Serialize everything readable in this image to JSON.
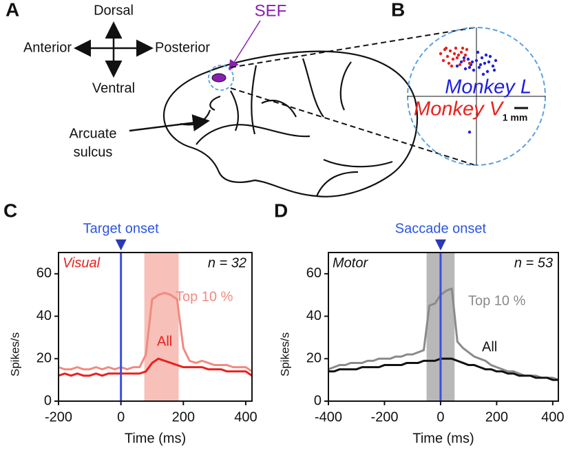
{
  "diagram": {
    "panel": "A",
    "dorsal": "Dorsal",
    "anterior": "Anterior",
    "posterior": "Posterior",
    "ventral": "Ventral",
    "sef": "SEF",
    "arcuate": [
      "Arcuate",
      "sulcus"
    ]
  },
  "chart_data": [
    {
      "type": "scatter",
      "panel": "B",
      "xlim": [
        -5,
        5
      ],
      "ylim": [
        -5,
        5
      ],
      "scale_label": "1 mm",
      "series": [
        {
          "name": "Monkey L",
          "color": "#1f1fe0",
          "x": [
            -1.4,
            -1.1,
            -0.8,
            -0.6,
            -0.4,
            -0.2,
            0.0,
            0.2,
            0.4,
            0.6,
            0.8,
            1.0,
            1.2,
            1.4,
            -0.9,
            -0.5,
            0.1,
            0.5,
            0.9,
            1.3,
            -0.3,
            0.3,
            0.7,
            -0.5
          ],
          "y": [
            2.2,
            2.5,
            2.0,
            2.7,
            2.3,
            1.9,
            2.6,
            2.1,
            2.8,
            2.4,
            1.8,
            2.9,
            2.2,
            2.6,
            2.8,
            2.1,
            3.2,
            1.6,
            2.5,
            1.9,
            2.5,
            2.3,
            3.0,
            -2.6
          ]
        },
        {
          "name": "Monkey V",
          "color": "#e8201c",
          "x": [
            -2.6,
            -2.3,
            -2.1,
            -1.9,
            -1.7,
            -1.5,
            -1.3,
            -1.1,
            -0.9,
            -0.7,
            -2.4,
            -2.0,
            -1.6,
            -1.2,
            -0.8,
            -2.2,
            -1.8,
            -1.4,
            -1.0,
            -0.5
          ],
          "y": [
            3.1,
            3.4,
            2.9,
            3.3,
            2.7,
            3.5,
            3.0,
            3.2,
            2.6,
            3.4,
            2.6,
            2.4,
            3.1,
            2.3,
            3.0,
            3.5,
            2.2,
            2.8,
            3.5,
            2.4
          ]
        }
      ]
    },
    {
      "type": "line",
      "panel": "C",
      "event_label": "Target onset",
      "event_x": 0,
      "label": "Visual",
      "label_color": "#e8201c",
      "n_label": "n = 32",
      "xlabel": "Time (ms)",
      "ylabel": "Spikes/s",
      "xlim": [
        -200,
        420
      ],
      "ylim": [
        0,
        70
      ],
      "xticks": [
        -200,
        0,
        200,
        400
      ],
      "yticks": [
        0,
        20,
        40,
        60
      ],
      "highlight": [
        75,
        185
      ],
      "highlight_color": "#f7c0b8",
      "x": [
        -200,
        -180,
        -160,
        -140,
        -120,
        -100,
        -80,
        -60,
        -40,
        -20,
        0,
        20,
        40,
        60,
        80,
        100,
        120,
        140,
        160,
        180,
        200,
        220,
        240,
        260,
        280,
        300,
        320,
        340,
        360,
        380,
        400,
        420
      ],
      "series": [
        {
          "name": "Top 10 %",
          "color": "#f08a80",
          "values": [
            16,
            15,
            15,
            16,
            15,
            15,
            16,
            15,
            16,
            15,
            16,
            15,
            16,
            16,
            22,
            48,
            50,
            51,
            50,
            48,
            25,
            19,
            18,
            19,
            18,
            17,
            17,
            17,
            16,
            16,
            16,
            14
          ]
        },
        {
          "name": "All",
          "color": "#e8201c",
          "values": [
            12,
            13,
            12,
            13,
            12,
            12,
            13,
            12,
            13,
            13,
            13,
            13,
            13,
            13,
            14,
            18,
            20,
            19,
            18,
            17,
            16,
            16,
            16,
            16,
            15,
            15,
            15,
            14,
            14,
            14,
            14,
            12
          ]
        }
      ]
    },
    {
      "type": "line",
      "panel": "D",
      "event_label": "Saccade onset",
      "event_x": 0,
      "label": "Motor",
      "label_color": "#111111",
      "n_label": "n = 53",
      "xlabel": "Time (ms)",
      "ylabel": "Spikes/s",
      "xlim": [
        -400,
        420
      ],
      "ylim": [
        0,
        70
      ],
      "xticks": [
        -400,
        -200,
        0,
        200,
        400
      ],
      "yticks": [
        0,
        20,
        40,
        60
      ],
      "highlight": [
        -50,
        50
      ],
      "highlight_color": "#b8b8b8",
      "x": [
        -400,
        -380,
        -360,
        -340,
        -320,
        -300,
        -280,
        -260,
        -240,
        -220,
        -200,
        -180,
        -160,
        -140,
        -120,
        -100,
        -80,
        -60,
        -40,
        -20,
        0,
        20,
        40,
        60,
        80,
        100,
        120,
        140,
        160,
        180,
        200,
        220,
        240,
        260,
        280,
        300,
        320,
        340,
        360,
        380,
        400,
        420
      ],
      "series": [
        {
          "name": "Top 10 %",
          "color": "#8a8a8a",
          "values": [
            15,
            16,
            17,
            17,
            18,
            18,
            18,
            19,
            19,
            20,
            20,
            20,
            21,
            21,
            22,
            22,
            23,
            24,
            45,
            46,
            50,
            52,
            53,
            28,
            25,
            23,
            21,
            20,
            19,
            17,
            16,
            15,
            14,
            14,
            13,
            12,
            12,
            12,
            11,
            11,
            11,
            10
          ]
        },
        {
          "name": "All",
          "color": "#111111",
          "values": [
            14,
            14,
            15,
            15,
            15,
            15,
            16,
            16,
            16,
            16,
            17,
            17,
            17,
            17,
            18,
            18,
            18,
            19,
            19,
            19,
            20,
            20,
            20,
            19,
            18,
            17,
            17,
            16,
            15,
            15,
            14,
            14,
            13,
            13,
            12,
            12,
            12,
            11,
            11,
            11,
            10,
            10
          ]
        }
      ]
    }
  ]
}
